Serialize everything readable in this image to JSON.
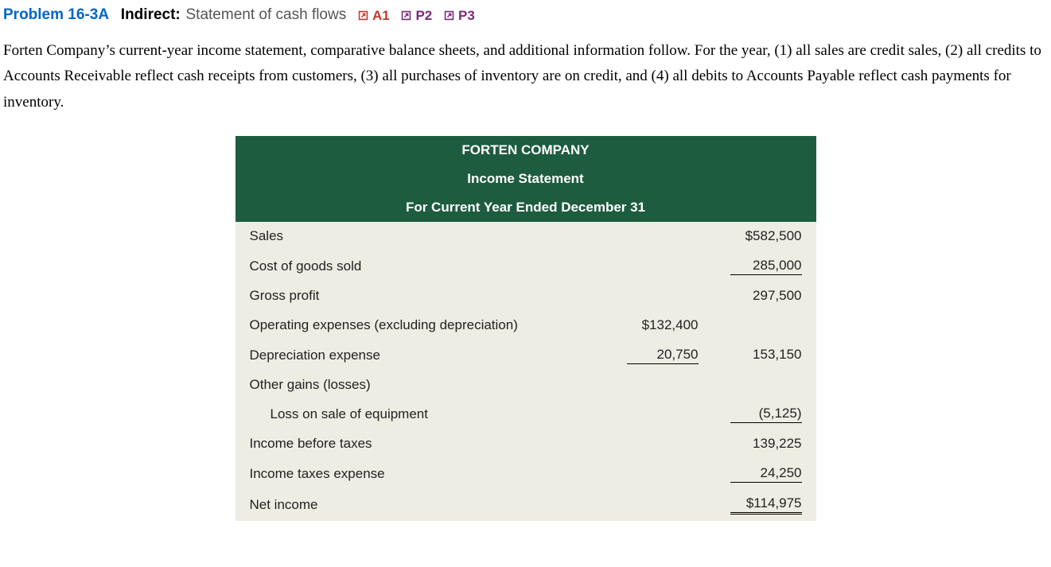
{
  "header": {
    "problem_number": "Problem 16-3A",
    "label": "Indirect:",
    "title": "Statement of cash flows",
    "refs": [
      {
        "text": "A1",
        "color": "#c0392b",
        "icon_color": "#c0392b"
      },
      {
        "text": "P2",
        "color": "#7a2a7a",
        "icon_color": "#7a2a7a"
      },
      {
        "text": "P3",
        "color": "#7a2a7a",
        "icon_color": "#7a2a7a"
      }
    ]
  },
  "intro": "Forten Company’s current-year income statement, comparative balance sheets, and additional information follow. For the year, (1) all sales are credit sales, (2) all credits to Accounts Receivable reflect cash receipts from customers, (3) all purchases of inventory are on credit, and (4) all debits to Accounts Payable reflect cash payments for inventory.",
  "table": {
    "header_bg": "#1e5c3f",
    "header_fg": "#ffffff",
    "body_bg": "#eeede3",
    "title_lines": [
      "FORTEN COMPANY",
      "Income Statement",
      "For Current Year Ended December 31"
    ],
    "rows": [
      {
        "label": "Sales",
        "col1": "",
        "col2": "$582,500",
        "col2_style": ""
      },
      {
        "label": "Cost of goods sold",
        "col1": "",
        "col2": "285,000",
        "col2_style": "single"
      },
      {
        "label": "Gross profit",
        "col1": "",
        "col2": "297,500",
        "col2_style": ""
      },
      {
        "label": "Operating expenses (excluding depreciation)",
        "col1": "$132,400",
        "col1_style": "",
        "col2": "",
        "col2_style": ""
      },
      {
        "label": "Depreciation expense",
        "col1": "20,750",
        "col1_style": "single",
        "col2": "153,150",
        "col2_style": ""
      },
      {
        "label": "Other gains (losses)",
        "col1": "",
        "col2": "",
        "col2_style": ""
      },
      {
        "label": "Loss on sale of equipment",
        "indent": true,
        "col1": "",
        "col2": "(5,125)",
        "col2_style": "single"
      },
      {
        "label": "Income before taxes",
        "col1": "",
        "col2": "139,225",
        "col2_style": ""
      },
      {
        "label": "Income taxes expense",
        "col1": "",
        "col2": "24,250",
        "col2_style": "single"
      },
      {
        "label": "Net income",
        "col1": "",
        "col2": "$114,975",
        "col2_style": "double"
      }
    ]
  }
}
